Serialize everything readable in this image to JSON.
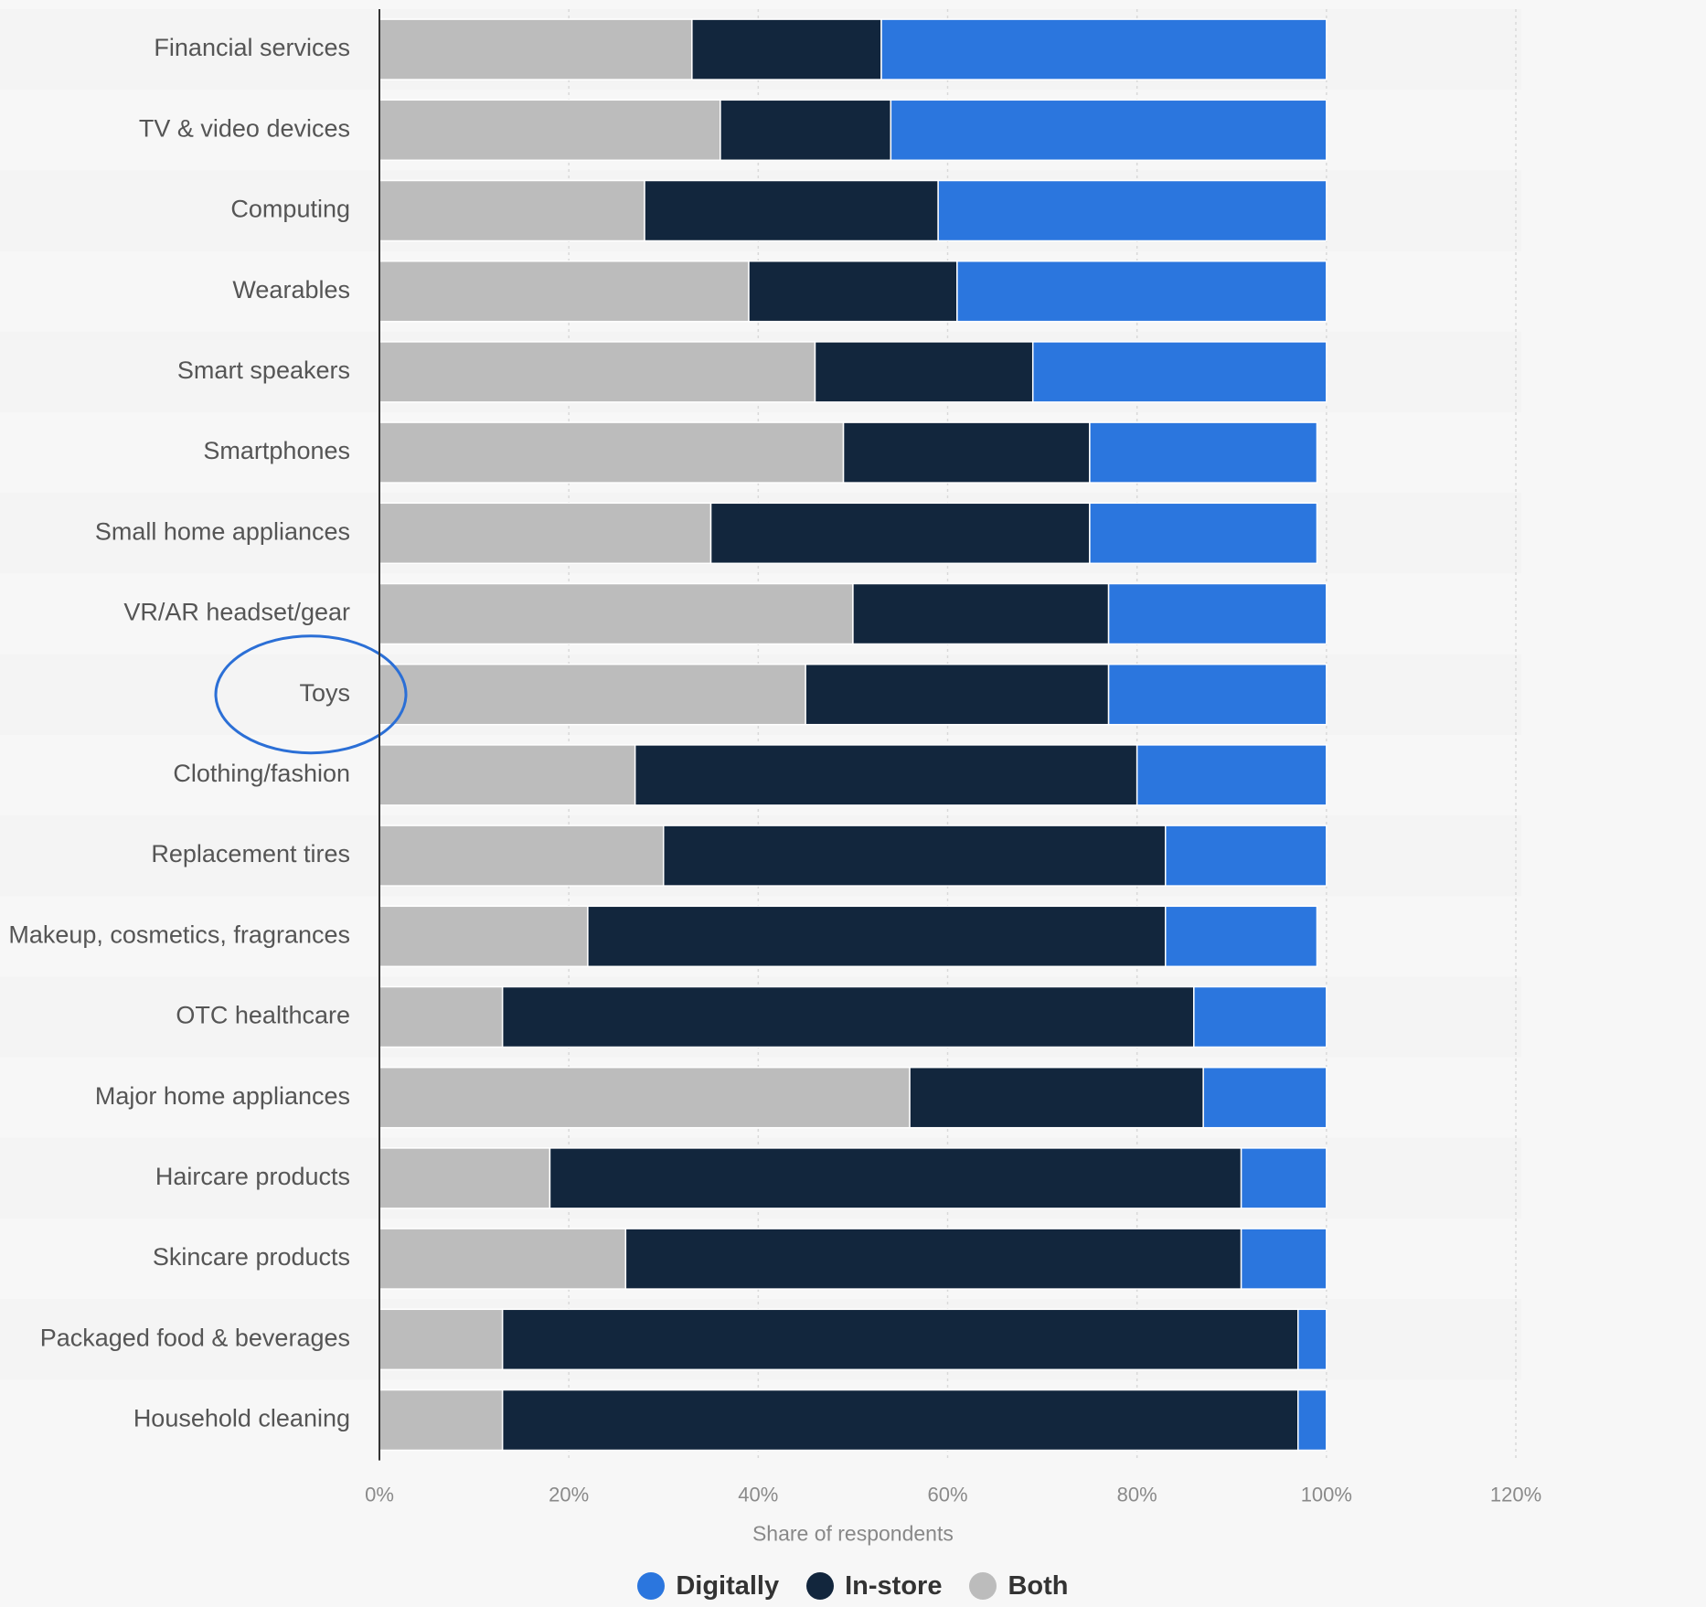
{
  "chart_data": {
    "type": "bar",
    "orientation": "horizontal",
    "stacked": true,
    "categories": [
      "Financial services",
      "TV & video devices",
      "Computing",
      "Wearables",
      "Smart speakers",
      "Smartphones",
      "Small home appliances",
      "VR/AR headset/gear",
      "Toys",
      "Clothing/fashion",
      "Replacement tires",
      "Makeup, cosmetics, fragrances",
      "OTC healthcare",
      "Major home appliances",
      "Haircare products",
      "Skincare products",
      "Packaged food & beverages",
      "Household cleaning"
    ],
    "series": [
      {
        "name": "Both",
        "color": "#bcbcbc",
        "values": [
          33,
          36,
          28,
          39,
          46,
          49,
          35,
          50,
          45,
          27,
          30,
          22,
          13,
          56,
          18,
          26,
          13,
          13
        ]
      },
      {
        "name": "In-store",
        "color": "#12263d",
        "values": [
          20,
          18,
          31,
          22,
          23,
          26,
          40,
          27,
          32,
          53,
          53,
          61,
          73,
          31,
          73,
          65,
          84,
          84
        ]
      },
      {
        "name": "Digitally",
        "color": "#2b76de",
        "values": [
          47,
          46,
          41,
          39,
          31,
          24,
          24,
          23,
          23,
          20,
          17,
          16,
          14,
          13,
          9,
          9,
          3,
          3
        ]
      }
    ],
    "legend_order": [
      "Digitally",
      "In-store",
      "Both"
    ],
    "xlabel": "Share of respondents",
    "xlim": [
      0,
      120
    ],
    "x_ticks": [
      "0%",
      "20%",
      "40%",
      "60%",
      "80%",
      "100%",
      "120%"
    ],
    "grid": true,
    "legend_position": "bottom",
    "highlight": {
      "category": "Toys",
      "color": "#2b6fd6"
    }
  }
}
